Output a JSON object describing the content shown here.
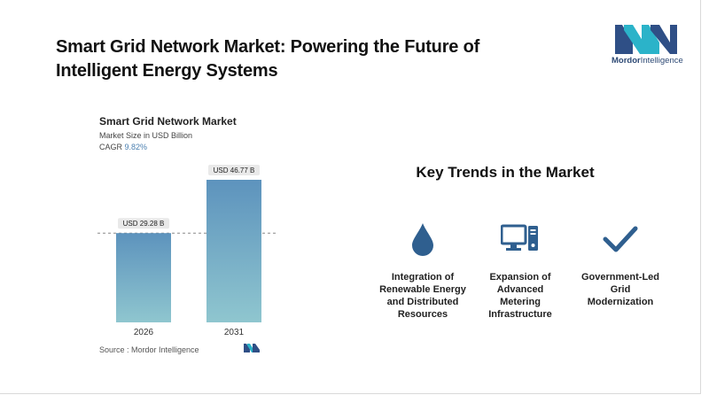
{
  "page": {
    "title": "Smart Grid Network Market: Powering the Future of Intelligent Energy Systems"
  },
  "logo": {
    "text_bold": "Mordor",
    "text_rest": "Intelligence",
    "colors": [
      "#2f4f86",
      "#2bb3c9"
    ]
  },
  "chart_data": {
    "type": "bar",
    "title": "Smart Grid Network Market",
    "subtitle": "Market Size in USD Billion",
    "cagr_label": "CAGR",
    "cagr_value": "9.82%",
    "categories": [
      "2026",
      "2031"
    ],
    "values": [
      29.28,
      46.77
    ],
    "data_labels": [
      "USD 29.28 B",
      "USD 46.77 B"
    ],
    "ylim": [
      0,
      50
    ],
    "bar_color": "#5d93bd",
    "reference_line": "dashed line at first bar value"
  },
  "source": {
    "text": "Source : Mordor Intelligence"
  },
  "trends": {
    "title": "Key Trends in the Market",
    "items": [
      {
        "icon": "water-drop-icon",
        "label": "Integration of Renewable Energy and Distributed Resources"
      },
      {
        "icon": "computer-monitor-icon",
        "label": "Expansion of Advanced Metering Infrastructure"
      },
      {
        "icon": "checkmark-icon",
        "label": "Government-Led Grid Modernization"
      }
    ],
    "icon_color": "#2f5f8f"
  }
}
